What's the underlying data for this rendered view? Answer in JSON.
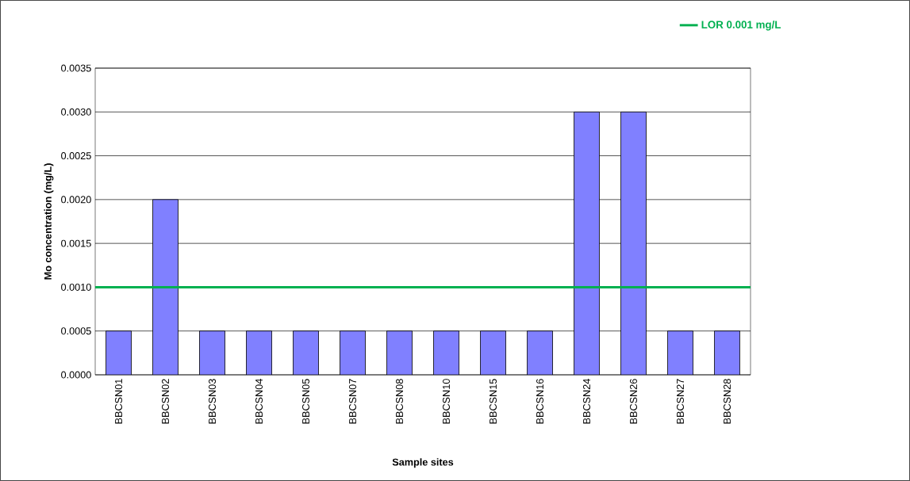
{
  "chart_data": {
    "type": "bar",
    "xlabel": "Sample sites",
    "ylabel": "Mo concentration (mg/L)",
    "categories": [
      "BBCSN01",
      "BBCSN02",
      "BBCSN03",
      "BBCSN04",
      "BBCSN05",
      "BBCSN07",
      "BBCSN08",
      "BBCSN10",
      "BBCSN15",
      "BBCSN16",
      "BBCSN24",
      "BBCSN26",
      "BBCSN27",
      "BBCSN28"
    ],
    "values": [
      0.0005,
      0.002,
      0.0005,
      0.0005,
      0.0005,
      0.0005,
      0.0005,
      0.0005,
      0.0005,
      0.0005,
      0.003,
      0.003,
      0.0005,
      0.0005
    ],
    "color": "#8080ff",
    "ylim": [
      0,
      0.0035
    ],
    "yticks": [
      {
        "value": 0,
        "label": "0.0000"
      },
      {
        "value": 0.0005,
        "label": "0.0005"
      },
      {
        "value": 0.001,
        "label": "0.0010"
      },
      {
        "value": 0.0015,
        "label": "0.0015"
      },
      {
        "value": 0.002,
        "label": "0.0020"
      },
      {
        "value": 0.0025,
        "label": "0.0025"
      },
      {
        "value": 0.003,
        "label": "0.0030"
      },
      {
        "value": 0.0035,
        "label": "0.0035"
      }
    ],
    "grid": "y",
    "legend": "top right",
    "ref_lines": [
      {
        "axis": "y",
        "value": 0.001,
        "label": "LOR 0.001 mg/L",
        "color": "#00b050"
      }
    ]
  }
}
